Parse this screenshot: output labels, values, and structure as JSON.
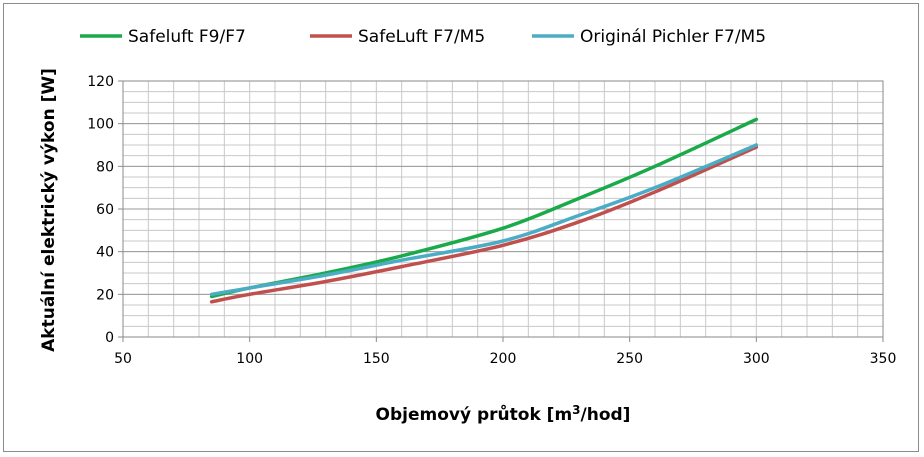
{
  "chart_data": {
    "type": "line",
    "title": "",
    "xlabel": "Objemový průtok [m³/hod]",
    "xlabel_parts": {
      "base": "Objemový průtok [m",
      "sup": "3",
      "tail": "/hod]"
    },
    "ylabel": "Aktuální elektrický výkon [W]",
    "xlim": [
      50,
      350
    ],
    "ylim": [
      0,
      120
    ],
    "xticks": [
      50,
      100,
      150,
      200,
      250,
      300,
      350
    ],
    "yticks": [
      0,
      20,
      40,
      60,
      80,
      100,
      120
    ],
    "grid": true,
    "legend_position": "top",
    "series": [
      {
        "name": "Safeluft F9/F7",
        "color": "#1aaa4a",
        "x": [
          85,
          100,
          130,
          160,
          200,
          230,
          260,
          300
        ],
        "y": [
          19,
          23,
          30,
          38,
          51,
          65,
          80,
          102
        ]
      },
      {
        "name": "SafeLuft F7/M5",
        "color": "#c0504d",
        "x": [
          85,
          100,
          130,
          160,
          200,
          230,
          260,
          300
        ],
        "y": [
          16.5,
          20,
          26,
          33,
          43,
          54,
          68,
          89
        ]
      },
      {
        "name": "Originál Pichler F7/M5",
        "color": "#4bacc6",
        "x": [
          85,
          100,
          130,
          160,
          200,
          230,
          260,
          300
        ],
        "y": [
          20,
          23,
          29,
          36,
          45,
          57,
          70,
          90
        ]
      }
    ]
  }
}
